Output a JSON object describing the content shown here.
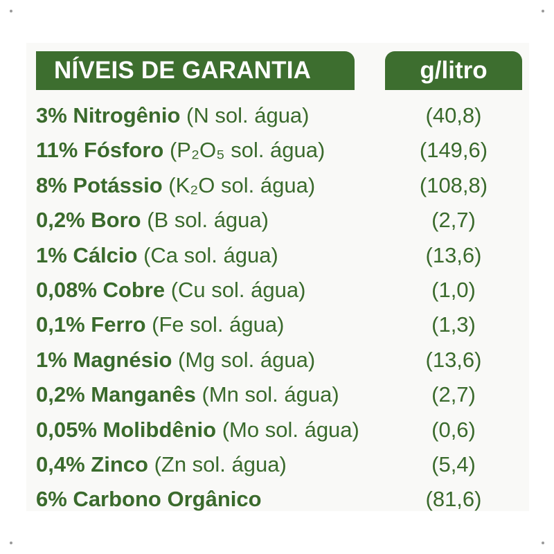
{
  "header": {
    "left": "NÍVEIS DE GARANTIA",
    "right": "g/litro"
  },
  "rows": [
    {
      "pct": "3%",
      "name": "Nitrogênio",
      "detail": "(N sol. água)",
      "value": "(40,8)"
    },
    {
      "pct": "11%",
      "name": "Fósforo",
      "detail": "(P₂O₅ sol. água)",
      "value": "(149,6)"
    },
    {
      "pct": "8%",
      "name": "Potássio",
      "detail": "(K₂O sol. água)",
      "value": "(108,8)"
    },
    {
      "pct": "0,2%",
      "name": "Boro",
      "detail": "(B sol. água)",
      "value": "(2,7)"
    },
    {
      "pct": "1%",
      "name": "Cálcio",
      "detail": "(Ca sol. água)",
      "value": "(13,6)"
    },
    {
      "pct": "0,08%",
      "name": "Cobre",
      "detail": "(Cu sol. água)",
      "value": "(1,0)"
    },
    {
      "pct": "0,1%",
      "name": "Ferro",
      "detail": "(Fe sol. água)",
      "value": "(1,3)"
    },
    {
      "pct": "1%",
      "name": "Magnésio",
      "detail": "(Mg sol. água)",
      "value": "(13,6)"
    },
    {
      "pct": "0,2%",
      "name": "Manganês",
      "detail": "(Mn sol. água)",
      "value": "(2,7)"
    },
    {
      "pct": "0,05%",
      "name": "Molibdênio",
      "detail": "(Mo sol. água)",
      "value": "(0,6)"
    },
    {
      "pct": "0,4%",
      "name": "Zinco",
      "detail": "(Zn sol. água)",
      "value": "(5,4)"
    },
    {
      "pct": "6%",
      "name": "Carbono Orgânico",
      "detail": "",
      "value": "(81,6)"
    }
  ],
  "colors": {
    "brand_green": "#3d6e2f",
    "text_green": "#3a6a2c"
  }
}
